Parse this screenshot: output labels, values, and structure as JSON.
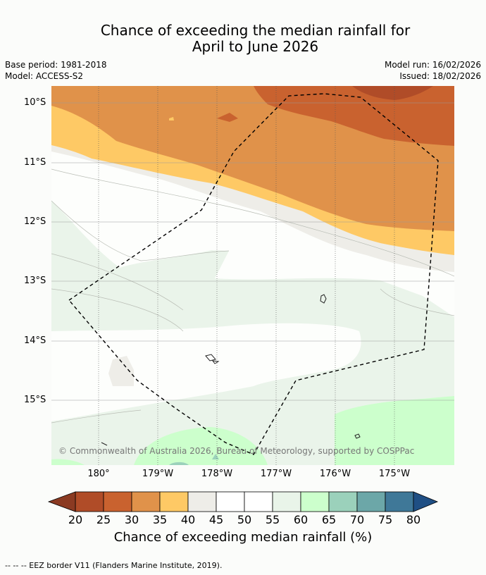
{
  "title": {
    "line1": "Chance of exceeding the median rainfall for",
    "line2": "April to June 2026"
  },
  "meta": {
    "base_period": "Base period: 1981-2018",
    "model": "Model: ACCESS-S2",
    "model_run": "Model run: 16/02/2026",
    "issued": "Issued: 18/02/2026"
  },
  "axes": {
    "lat_labels": [
      "10°S",
      "11°S",
      "12°S",
      "13°S",
      "14°S",
      "15°S"
    ],
    "lon_labels": [
      "180°",
      "179°W",
      "178°W",
      "177°W",
      "176°W",
      "175°W"
    ]
  },
  "copyright": "© Commonwealth of Australia 2026, Bureau of Meteorology, supported by COSPPac",
  "colorbar": {
    "ticks": [
      "20",
      "25",
      "30",
      "35",
      "40",
      "45",
      "50",
      "55",
      "60",
      "65",
      "70",
      "75",
      "80"
    ],
    "colors": [
      "#b04c28",
      "#c9622f",
      "#e0924a",
      "#fec965",
      "#eeede8",
      "#ffffff",
      "#ffffff",
      "#e9f4e9",
      "#ccffcc",
      "#9bd1bb",
      "#6ca7a8",
      "#3f7898"
    ],
    "under_color": "#8b3a22",
    "over_color": "#1f4f84",
    "label": "Chance of exceeding median rainfall (%)"
  },
  "legend_note": "--  --  -- EEZ border V11 (Flanders Marine Institute, 2019)."
}
